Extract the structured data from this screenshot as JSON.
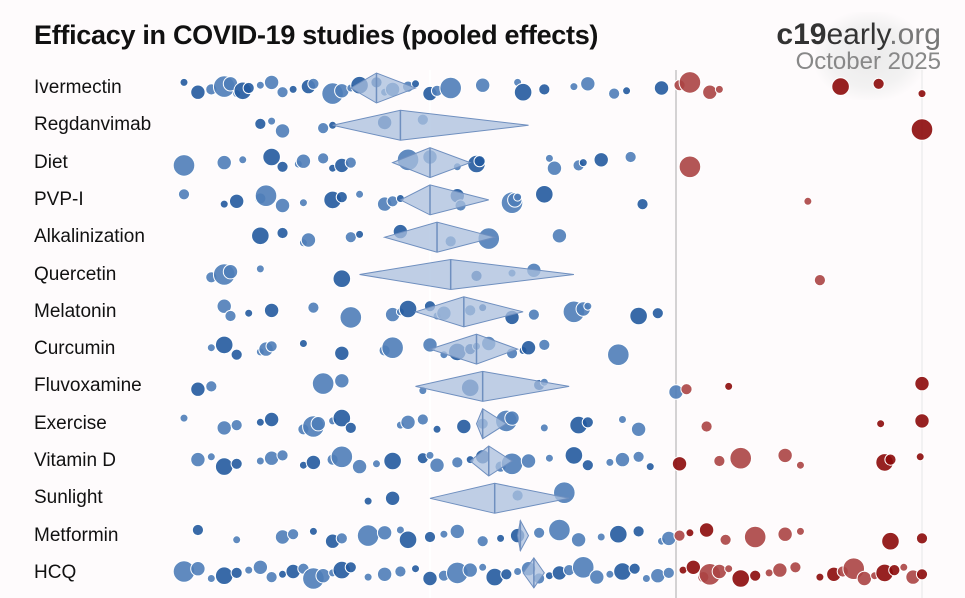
{
  "chart_data": {
    "type": "scatter",
    "title": "Efficacy in COVID-19 studies (pooled effects)",
    "x_scale": "log",
    "x_measure": "relative risk",
    "xlim": [
      0.245,
      2.0
    ],
    "reference_lines": [
      0.5,
      1.0,
      2.0
    ],
    "colors": {
      "benefit": "#4f7db8",
      "benefit_dark": "#245a9e",
      "harm": "#ab4444",
      "harm_dark": "#8c0a0a",
      "diamond": "#a9bfdd",
      "diamond_stroke": "#6f8fbf",
      "null_line": "#bdbdbd"
    },
    "rows": [
      {
        "label": "Ivermectin",
        "pooled": [
          0.4,
          0.43,
          0.48
        ],
        "dots": [
          0.25,
          0.26,
          0.27,
          0.28,
          0.285,
          0.29,
          0.295,
          0.3,
          0.31,
          0.32,
          0.33,
          0.34,
          0.355,
          0.36,
          0.38,
          0.39,
          0.4,
          0.41,
          0.43,
          0.44,
          0.45,
          0.47,
          0.48,
          0.5,
          0.51,
          0.53,
          0.58,
          0.64,
          0.65,
          0.69,
          0.75,
          0.78,
          0.84,
          0.87,
          0.96,
          1.01,
          1.04,
          1.1,
          1.13,
          1.59,
          1.77,
          2.0
        ]
      },
      {
        "label": "Regdanvimab",
        "pooled": [
          0.38,
          0.46,
          0.66
        ],
        "dots": [
          0.31,
          0.32,
          0.33,
          0.37,
          0.38,
          0.44,
          0.49,
          2.0
        ]
      },
      {
        "label": "Diet",
        "pooled": [
          0.45,
          0.5,
          0.56
        ],
        "dots": [
          0.25,
          0.28,
          0.295,
          0.32,
          0.33,
          0.345,
          0.35,
          0.37,
          0.38,
          0.39,
          0.4,
          0.47,
          0.5,
          0.54,
          0.57,
          0.575,
          0.7,
          0.71,
          0.76,
          0.77,
          0.81,
          0.88,
          1.04
        ]
      },
      {
        "label": "PVP-I",
        "pooled": [
          0.46,
          0.5,
          0.59
        ],
        "dots": [
          0.25,
          0.28,
          0.29,
          0.31,
          0.315,
          0.33,
          0.35,
          0.38,
          0.39,
          0.41,
          0.44,
          0.45,
          0.46,
          0.54,
          0.545,
          0.63,
          0.635,
          0.64,
          0.69,
          0.91,
          1.45
        ]
      },
      {
        "label": "Alkalinization",
        "pooled": [
          0.44,
          0.51,
          0.6
        ],
        "dots": [
          0.31,
          0.33,
          0.35,
          0.355,
          0.4,
          0.41,
          0.46,
          0.53,
          0.59,
          0.72
        ]
      },
      {
        "label": "Quercetin",
        "pooled": [
          0.41,
          0.53,
          0.75
        ],
        "dots": [
          0.27,
          0.28,
          0.285,
          0.31,
          0.39,
          0.57,
          0.63,
          0.67,
          1.5
        ]
      },
      {
        "label": "Melatonin",
        "pooled": [
          0.48,
          0.55,
          0.65
        ],
        "dots": [
          0.28,
          0.285,
          0.3,
          0.32,
          0.36,
          0.4,
          0.45,
          0.46,
          0.47,
          0.5,
          0.51,
          0.52,
          0.56,
          0.58,
          0.63,
          0.67,
          0.75,
          0.77,
          0.78,
          0.9,
          0.95
        ]
      },
      {
        "label": "Curcumin",
        "pooled": [
          0.5,
          0.57,
          0.64
        ],
        "dots": [
          0.27,
          0.28,
          0.29,
          0.31,
          0.315,
          0.32,
          0.35,
          0.39,
          0.44,
          0.45,
          0.5,
          0.52,
          0.54,
          0.56,
          0.57,
          0.59,
          0.63,
          0.65,
          0.66,
          0.69,
          0.85
        ]
      },
      {
        "label": "Fluvoxamine",
        "pooled": [
          0.48,
          0.58,
          0.74
        ],
        "dots": [
          0.26,
          0.27,
          0.37,
          0.39,
          0.49,
          0.56,
          0.68,
          0.69,
          1.0,
          1.03,
          1.16,
          2.0
        ]
      },
      {
        "label": "Exercise",
        "pooled": [
          0.57,
          0.58,
          0.62
        ],
        "dots": [
          0.25,
          0.28,
          0.29,
          0.31,
          0.32,
          0.35,
          0.36,
          0.365,
          0.38,
          0.39,
          0.4,
          0.46,
          0.47,
          0.49,
          0.51,
          0.55,
          0.58,
          0.62,
          0.63,
          0.69,
          0.76,
          0.78,
          0.86,
          0.9,
          1.09,
          1.78,
          2.0
        ]
      },
      {
        "label": "Vitamin D",
        "pooled": [
          0.56,
          0.59,
          0.63
        ],
        "dots": [
          0.26,
          0.27,
          0.28,
          0.29,
          0.31,
          0.32,
          0.33,
          0.35,
          0.36,
          0.38,
          0.39,
          0.41,
          0.43,
          0.45,
          0.49,
          0.5,
          0.51,
          0.54,
          0.56,
          0.58,
          0.61,
          0.63,
          0.66,
          0.7,
          0.75,
          0.78,
          0.83,
          0.86,
          0.9,
          0.93,
          1.01,
          1.13,
          1.2,
          1.36,
          1.42,
          1.8,
          1.83,
          1.99
        ]
      },
      {
        "label": "Sunlight",
        "pooled": [
          0.5,
          0.6,
          0.74
        ],
        "dots": [
          0.42,
          0.45,
          0.64,
          0.73
        ]
      },
      {
        "label": "Metformin",
        "pooled": [
          0.64,
          0.645,
          0.66
        ],
        "dots": [
          0.26,
          0.29,
          0.33,
          0.34,
          0.36,
          0.38,
          0.39,
          0.42,
          0.44,
          0.46,
          0.47,
          0.5,
          0.52,
          0.54,
          0.58,
          0.61,
          0.64,
          0.68,
          0.72,
          0.76,
          0.81,
          0.85,
          0.9,
          0.96,
          0.98,
          1.01,
          1.04,
          1.09,
          1.15,
          1.25,
          1.36,
          1.42,
          1.83,
          2.0
        ]
      },
      {
        "label": "HCQ",
        "pooled": [
          0.65,
          0.67,
          0.69
        ],
        "dots": [
          0.25,
          0.26,
          0.27,
          0.28,
          0.29,
          0.3,
          0.31,
          0.32,
          0.33,
          0.34,
          0.35,
          0.36,
          0.37,
          0.38,
          0.39,
          0.4,
          0.42,
          0.44,
          0.46,
          0.48,
          0.5,
          0.52,
          0.54,
          0.56,
          0.58,
          0.6,
          0.62,
          0.64,
          0.66,
          0.68,
          0.7,
          0.72,
          0.74,
          0.77,
          0.8,
          0.83,
          0.86,
          0.89,
          0.92,
          0.95,
          0.98,
          1.02,
          1.05,
          1.08,
          1.1,
          1.13,
          1.16,
          1.2,
          1.25,
          1.3,
          1.34,
          1.4,
          1.5,
          1.56,
          1.6,
          1.65,
          1.7,
          1.75,
          1.8,
          1.85,
          1.9,
          1.95,
          2.0
        ]
      }
    ]
  },
  "brand": {
    "bold": "c19",
    "light": "early",
    "tld": ".org",
    "date": "October 2025"
  }
}
